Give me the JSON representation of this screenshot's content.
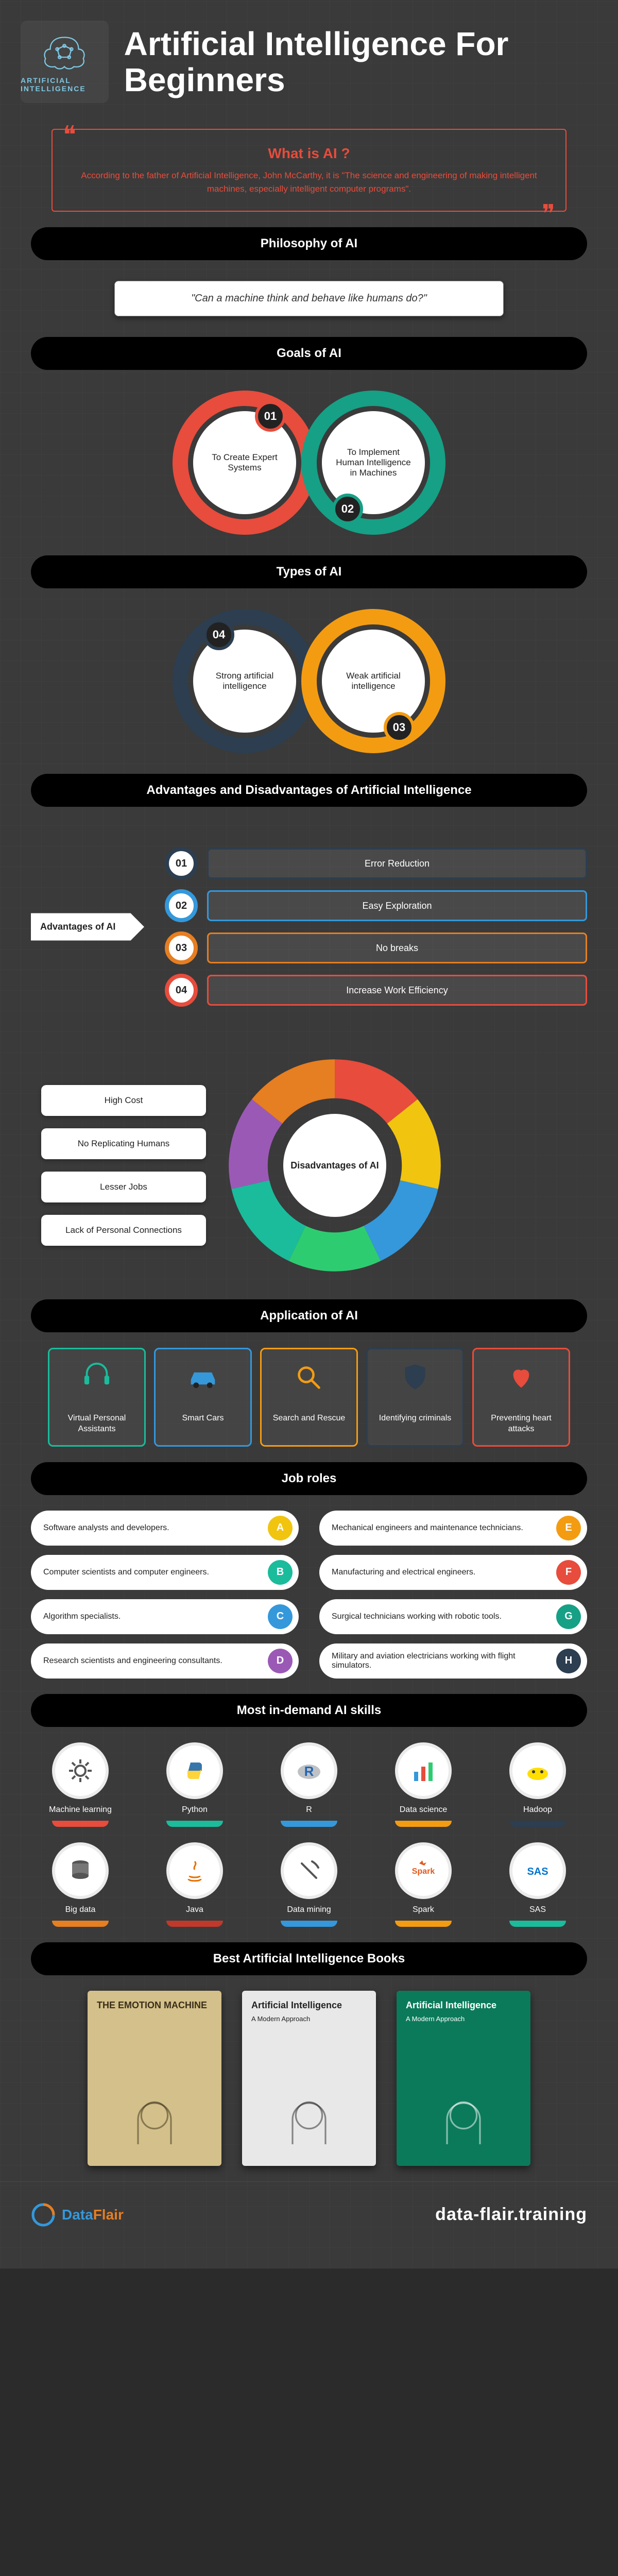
{
  "hero": {
    "badge_label": "ARTIFICIAL INTELLIGENCE",
    "title": "Artificial Intelligence For Beginners"
  },
  "whatis": {
    "heading": "What is AI ?",
    "body": "According to the father of Artificial Intelligence, John McCarthy, it is \"The science and engineering of making intelligent machines, especially intelligent computer programs\"."
  },
  "sections": {
    "philosophy": "Philosophy of AI",
    "goals": "Goals of AI",
    "types": "Types of AI",
    "adv_dis": "Advantages and Disadvantages of Artificial Intelligence",
    "applications": "Application of AI",
    "jobs": "Job roles",
    "skills": "Most in-demand AI skills",
    "books": "Best Artificial Intelligence Books"
  },
  "philosophy_quote": "\"Can a machine think and behave like humans do?\"",
  "goals": [
    {
      "num": "01",
      "text": "To Create Expert Systems",
      "color": "#e74c3c"
    },
    {
      "num": "02",
      "text": "To Implement Human Intelligence in Machines",
      "color": "#16a085"
    }
  ],
  "types": [
    {
      "num": "04",
      "text": "Strong artificial intelligence",
      "color": "#2c3e50"
    },
    {
      "num": "03",
      "text": "Weak artificial intelligence",
      "color": "#f39c12"
    }
  ],
  "advantages": {
    "label": "Advantages of AI",
    "items": [
      {
        "num": "01",
        "text": "Error Reduction",
        "color": "#2c3e50"
      },
      {
        "num": "02",
        "text": "Easy Exploration",
        "color": "#3498db"
      },
      {
        "num": "03",
        "text": "No breaks",
        "color": "#e67e22"
      },
      {
        "num": "04",
        "text": "Increase Work Efficiency",
        "color": "#e74c3c"
      }
    ]
  },
  "disadvantages": {
    "label": "Disadvantages of AI",
    "items": [
      "High Cost",
      "No Replicating Humans",
      "Lesser Jobs",
      "Lack of Personal Connections"
    ],
    "donut_colors": [
      "#e74c3c",
      "#f1c40f",
      "#3498db",
      "#2ecc71",
      "#1abc9c",
      "#9b59b6",
      "#e67e22"
    ]
  },
  "applications": [
    {
      "label": "Virtual Personal Assistants",
      "color": "#1abc9c",
      "icon": "headset"
    },
    {
      "label": "Smart Cars",
      "color": "#3498db",
      "icon": "car"
    },
    {
      "label": "Search and Rescue",
      "color": "#f39c12",
      "icon": "search"
    },
    {
      "label": "Identifying criminals",
      "color": "#2c3e50",
      "icon": "shield"
    },
    {
      "label": "Preventing heart attacks",
      "color": "#e74c3c",
      "icon": "heart"
    }
  ],
  "jobs": [
    {
      "letter": "A",
      "text": "Software analysts and developers.",
      "color": "#f1c40f"
    },
    {
      "letter": "E",
      "text": "Mechanical engineers and maintenance technicians.",
      "color": "#f39c12"
    },
    {
      "letter": "B",
      "text": "Computer scientists and computer engineers.",
      "color": "#1abc9c"
    },
    {
      "letter": "F",
      "text": "Manufacturing and electrical engineers.",
      "color": "#e74c3c"
    },
    {
      "letter": "C",
      "text": "Algorithm specialists.",
      "color": "#3498db"
    },
    {
      "letter": "G",
      "text": "Surgical technicians working with robotic tools.",
      "color": "#16a085"
    },
    {
      "letter": "D",
      "text": "Research scientists and engineering consultants.",
      "color": "#9b59b6"
    },
    {
      "letter": "H",
      "text": "Military and aviation electricians working with flight simulators.",
      "color": "#2c3e50"
    }
  ],
  "skills": [
    {
      "label": "Machine learning",
      "color": "#e74c3c",
      "icon": "gear"
    },
    {
      "label": "Python",
      "color": "#1abc9c",
      "icon": "python"
    },
    {
      "label": "R",
      "color": "#3498db",
      "icon": "r"
    },
    {
      "label": "Data science",
      "color": "#f39c12",
      "icon": "chart"
    },
    {
      "label": "Hadoop",
      "color": "#2c3e50",
      "icon": "hadoop"
    },
    {
      "label": "Big data",
      "color": "#e67e22",
      "icon": "db"
    },
    {
      "label": "Java",
      "color": "#c0392b",
      "icon": "java"
    },
    {
      "label": "Data mining",
      "color": "#3498db",
      "icon": "pick"
    },
    {
      "label": "Spark",
      "color": "#f39c12",
      "icon": "spark"
    },
    {
      "label": "SAS",
      "color": "#1abc9c",
      "icon": "sas"
    }
  ],
  "books": [
    {
      "title": "THE EMOTION MACHINE",
      "subtitle": "",
      "bg": "#d4c08a",
      "fg": "#3a2f1a"
    },
    {
      "title": "Artificial Intelligence",
      "subtitle": "A Modern Approach",
      "bg": "#e8e8e8",
      "fg": "#222"
    },
    {
      "title": "Artificial Intelligence",
      "subtitle": "A Modern Approach",
      "bg": "#0b7a5a",
      "fg": "#fff"
    }
  ],
  "footer": {
    "brand1": "Data",
    "brand2": "Flair",
    "url": "data-flair.training"
  }
}
